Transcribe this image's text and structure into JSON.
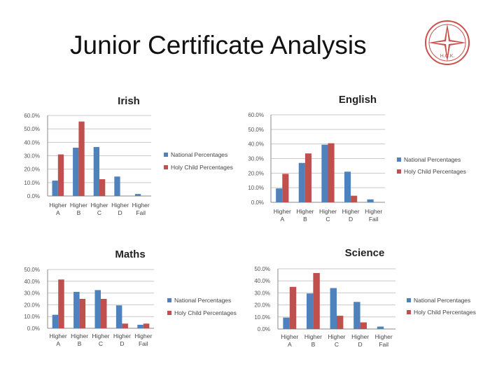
{
  "page": {
    "title": "Junior Certificate Analysis",
    "logo_text": "H.C.K."
  },
  "colors": {
    "national": "#4F81BD",
    "holy_child": "#C0504D"
  },
  "chart_data": [
    {
      "type": "bar",
      "title": "Irish",
      "ylim": [
        0,
        60
      ],
      "yticks": [
        "60.0%",
        "50.0%",
        "40.0%",
        "30.0%",
        "20.0%",
        "10.0%",
        "0.0%"
      ],
      "categories": [
        [
          "Higher",
          "A"
        ],
        [
          "Higher",
          "B"
        ],
        [
          "Higher",
          "C"
        ],
        [
          "Higher",
          "D"
        ],
        [
          "Higher",
          "Fail"
        ]
      ],
      "series": [
        {
          "name": "National Percentages",
          "values": [
            11.5,
            36,
            36.5,
            14.5,
            1.5
          ]
        },
        {
          "name": "Holy Child Percentages",
          "values": [
            31,
            55.5,
            12.5,
            0,
            0
          ]
        }
      ],
      "legend": "right"
    },
    {
      "type": "bar",
      "title": "English",
      "ylim": [
        0,
        60
      ],
      "yticks": [
        "60.0%",
        "50.0%",
        "40.0%",
        "30.0%",
        "20.0%",
        "10.0%",
        "0.0%"
      ],
      "categories": [
        [
          "Higher",
          "A"
        ],
        [
          "Higher",
          "B"
        ],
        [
          "Higher",
          "C"
        ],
        [
          "Higher",
          "D"
        ],
        [
          "Higher",
          "Fail"
        ]
      ],
      "series": [
        {
          "name": "National Percentages",
          "values": [
            9.5,
            27,
            39.5,
            21,
            2
          ]
        },
        {
          "name": "Holy Child Percentages",
          "values": [
            19.5,
            33.5,
            40.5,
            4.5,
            0
          ]
        }
      ],
      "legend": "right"
    },
    {
      "type": "bar",
      "title": "Maths",
      "ylim": [
        0,
        50
      ],
      "yticks": [
        "50.0%",
        "40.0%",
        "30.0%",
        "20.0%",
        "10.0%",
        "0.0%"
      ],
      "categories": [
        [
          "Higher",
          "A"
        ],
        [
          "Higher",
          "B"
        ],
        [
          "Higher",
          "C"
        ],
        [
          "Higher",
          "D"
        ],
        [
          "Higher",
          "Fail"
        ]
      ],
      "series": [
        {
          "name": "National Percentages",
          "values": [
            11.5,
            31,
            32.5,
            19.5,
            3
          ]
        },
        {
          "name": "Holy Child Percentages",
          "values": [
            41.5,
            25,
            25,
            4,
            4
          ]
        }
      ],
      "legend": "right"
    },
    {
      "type": "bar",
      "title": "Science",
      "ylim": [
        0,
        50
      ],
      "yticks": [
        "50.0%",
        "40.0%",
        "30.0%",
        "20.0%",
        "10.0%",
        "0.0%"
      ],
      "categories": [
        [
          "Higher",
          "A"
        ],
        [
          "Higher",
          "B"
        ],
        [
          "Higher",
          "C"
        ],
        [
          "Higher",
          "D"
        ],
        [
          "Higher",
          "Fail"
        ]
      ],
      "series": [
        {
          "name": "National Percentages",
          "values": [
            9.5,
            29.5,
            34,
            22.5,
            2
          ]
        },
        {
          "name": "Holy Child Percentages",
          "values": [
            35,
            46.5,
            11,
            5.5,
            0
          ]
        }
      ],
      "legend": "right"
    }
  ]
}
